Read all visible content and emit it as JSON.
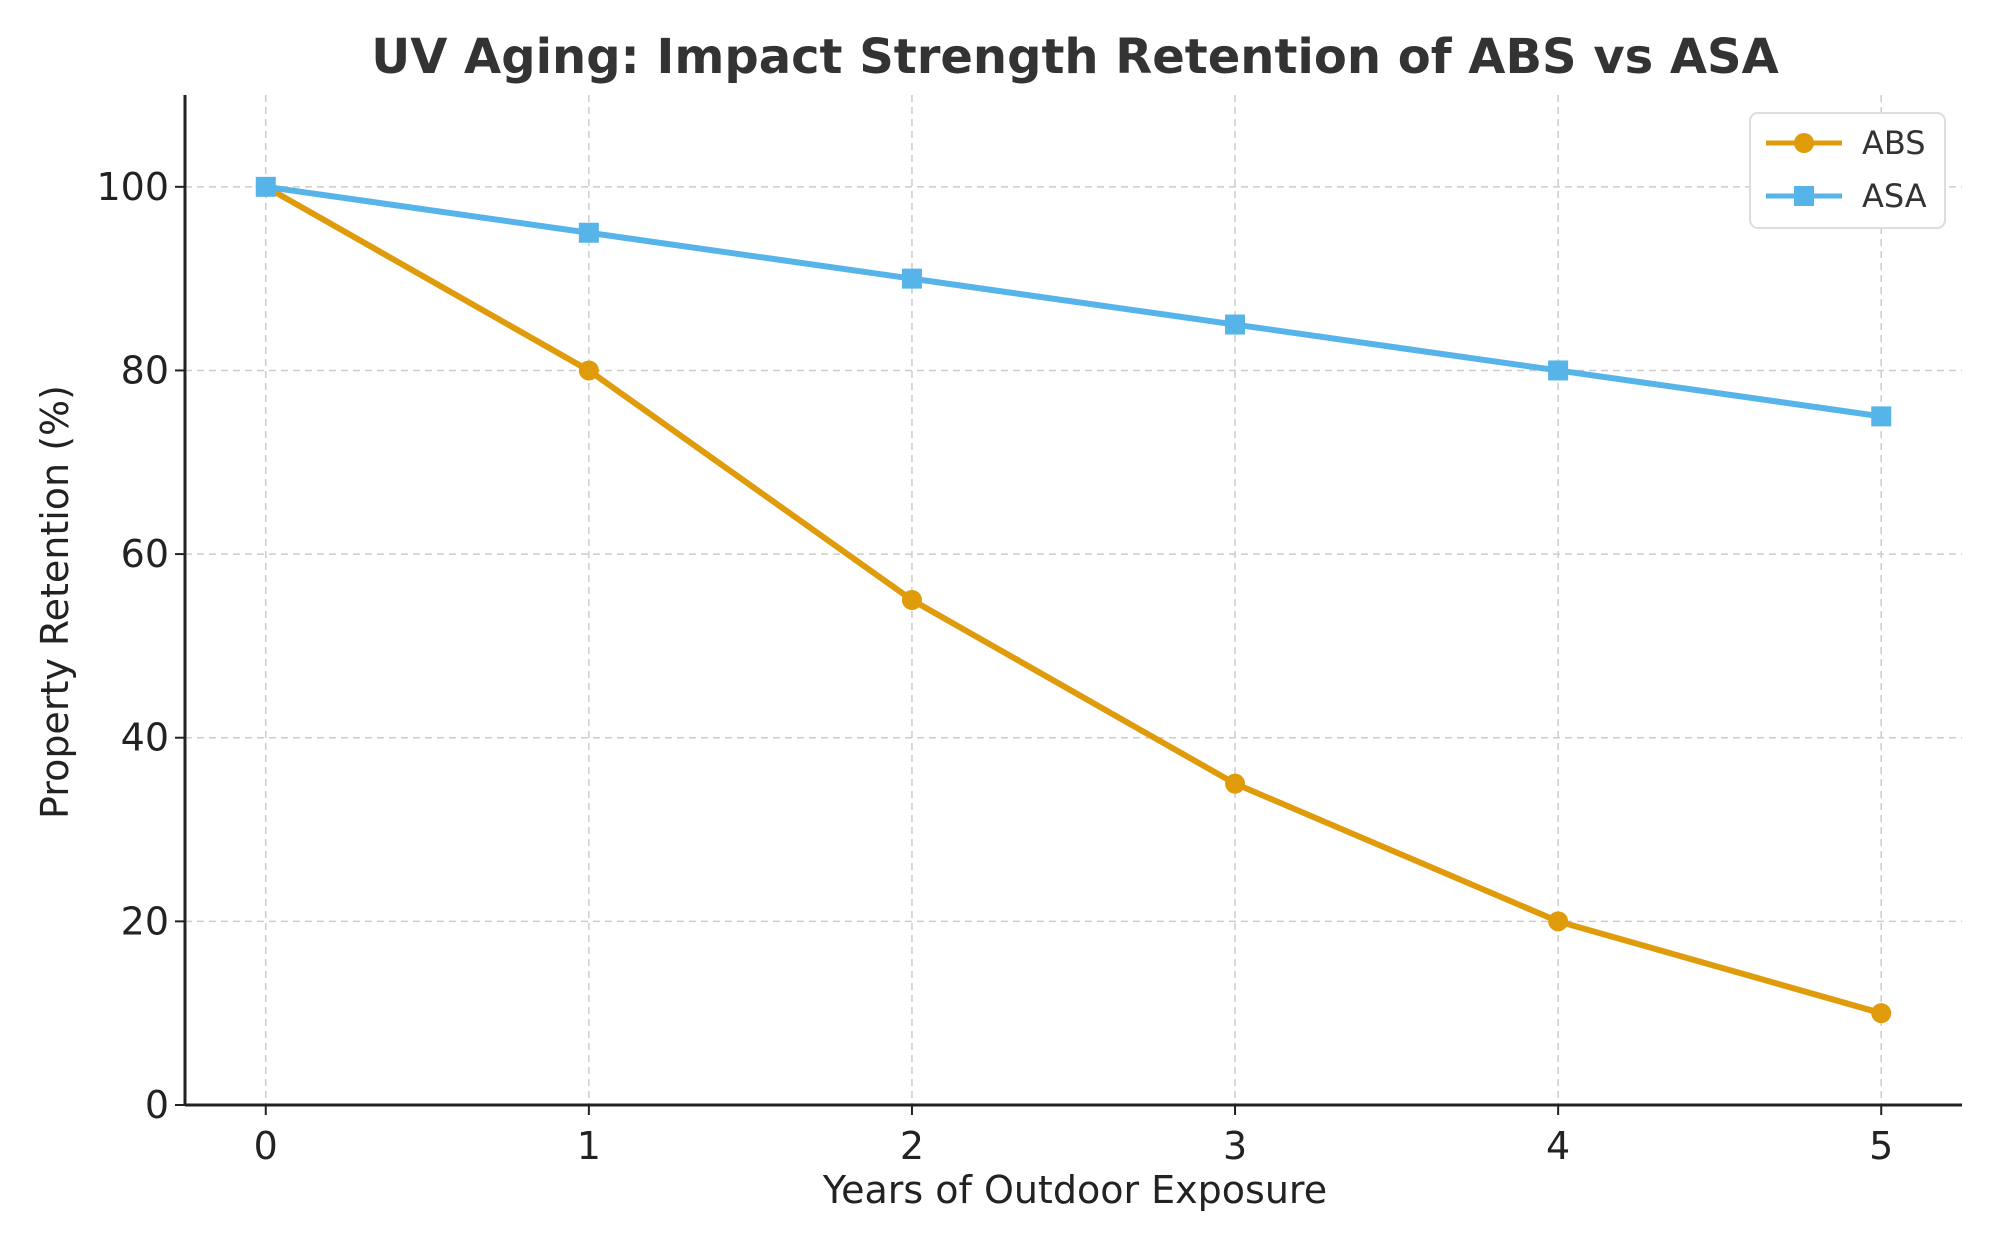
{
  "chart_data": {
    "type": "line",
    "title": "UV Aging: Impact Strength Retention of ABS vs ASA",
    "xlabel": "Years of Outdoor Exposure",
    "ylabel": "Property Retention (%)",
    "x": [
      0,
      1,
      2,
      3,
      4,
      5
    ],
    "xticks": [
      "0",
      "1",
      "2",
      "3",
      "4",
      "5"
    ],
    "yticks": [
      "0",
      "20",
      "40",
      "60",
      "80",
      "100"
    ],
    "xlim": [
      -0.25,
      5.25
    ],
    "ylim": [
      0,
      110
    ],
    "grid": true,
    "legend_position": "top-right",
    "series": [
      {
        "name": "ABS",
        "values": [
          100,
          80,
          55,
          35,
          20,
          10
        ],
        "color": "#E09B0B",
        "marker": "circle"
      },
      {
        "name": "ASA",
        "values": [
          100,
          95,
          90,
          85,
          80,
          75
        ],
        "color": "#56B4E9",
        "marker": "square"
      }
    ]
  }
}
